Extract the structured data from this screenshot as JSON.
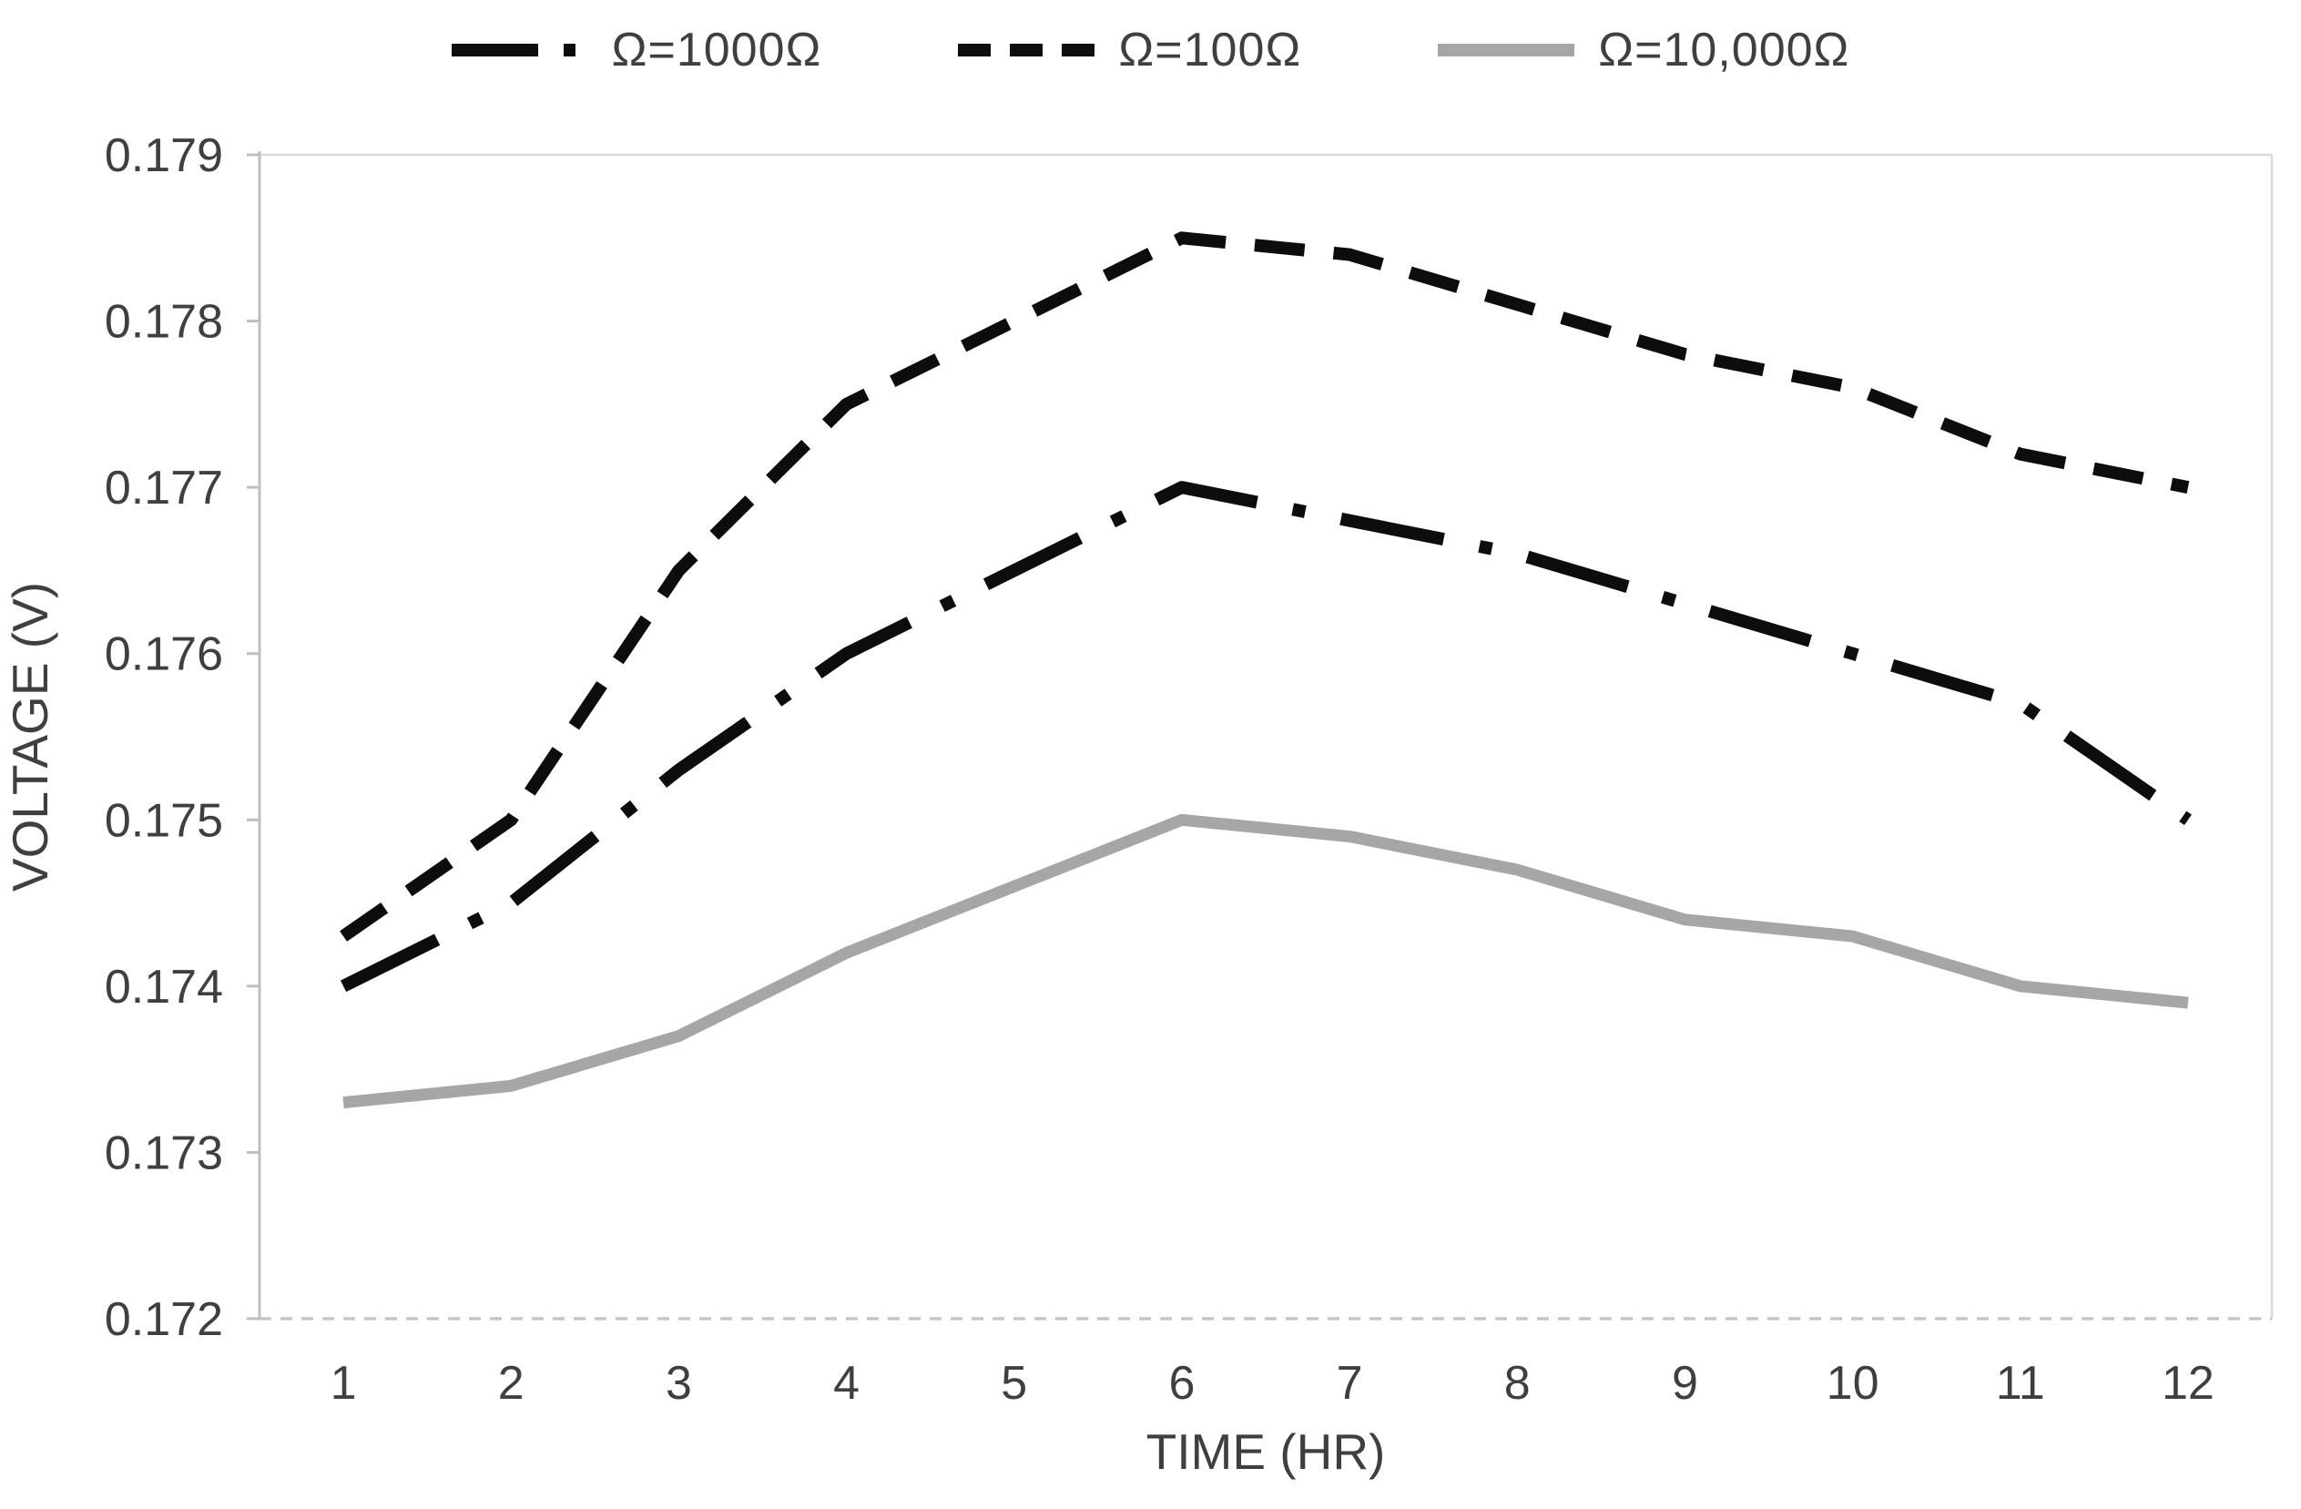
{
  "chart_data": {
    "type": "line",
    "title": "",
    "xlabel": "TIME (HR)",
    "ylabel": "VOLTAGE (V)",
    "x": [
      1,
      2,
      3,
      4,
      5,
      6,
      7,
      8,
      9,
      10,
      11,
      12
    ],
    "xticks": [
      "1",
      "2",
      "3",
      "4",
      "5",
      "6",
      "7",
      "8",
      "9",
      "10",
      "11",
      "12"
    ],
    "yticks": [
      "0.179",
      "0.178",
      "0.177",
      "0.176",
      "0.175",
      "0.174",
      "0.173",
      "0.172"
    ],
    "ylim": [
      0.172,
      0.179
    ],
    "xlim_categories": 12,
    "grid": false,
    "legend_position": "top-center",
    "series": [
      {
        "name": "Ω=1000Ω",
        "style": "dash-dot",
        "color": "#0d0d0d",
        "values": [
          0.174,
          0.1745,
          0.1753,
          0.176,
          0.1765,
          0.177,
          0.1768,
          0.1766,
          0.1763,
          0.176,
          0.1757,
          0.175
        ]
      },
      {
        "name": "Ω=100Ω",
        "style": "dashed",
        "color": "#0d0d0d",
        "values": [
          0.1743,
          0.175,
          0.1765,
          0.1775,
          0.178,
          0.1785,
          0.1784,
          0.1781,
          0.1778,
          0.1776,
          0.1772,
          0.177
        ]
      },
      {
        "name": "Ω=10,000Ω",
        "style": "solid",
        "color": "#a6a6a6",
        "values": [
          0.1733,
          0.1734,
          0.1737,
          0.1742,
          0.1746,
          0.175,
          0.1749,
          0.1747,
          0.1744,
          0.1743,
          0.174,
          0.1739
        ]
      }
    ],
    "frame_color": "#d9d9d9",
    "left_axis_color": "#bfbfbf",
    "bottom_axis_color": "#c6c6c6",
    "text_color": "#3f3f3f"
  }
}
